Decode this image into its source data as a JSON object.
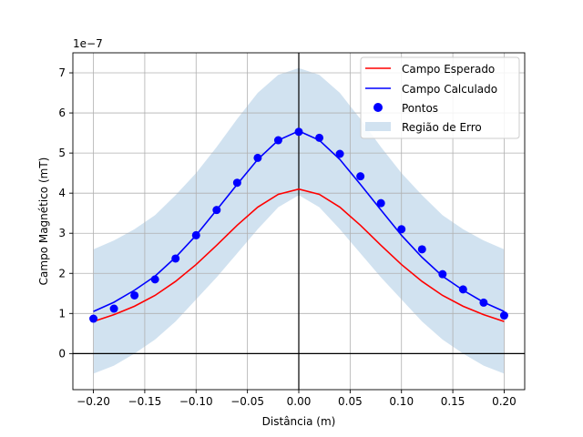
{
  "chart_data": {
    "type": "line",
    "xlabel": "Distância (m)",
    "ylabel": "Campo Magnético (mT)",
    "y_offset_label": "1e−7",
    "xlim": [
      -0.22,
      0.22
    ],
    "ylim": [
      -0.9,
      7.5
    ],
    "x_ticks": [
      -0.2,
      -0.15,
      -0.1,
      -0.05,
      0.0,
      0.05,
      0.1,
      0.15,
      0.2
    ],
    "x_tick_labels": [
      "−0.20",
      "−0.15",
      "−0.10",
      "−0.05",
      "0.00",
      "0.05",
      "0.10",
      "0.15",
      "0.20"
    ],
    "y_ticks": [
      0,
      1,
      2,
      3,
      4,
      5,
      6,
      7
    ],
    "y_tick_labels": [
      "0",
      "1",
      "2",
      "3",
      "4",
      "5",
      "6",
      "7"
    ],
    "grid": true,
    "zero_lines": true,
    "legend_position": "top-right",
    "x": [
      -0.2,
      -0.18,
      -0.16,
      -0.14,
      -0.12,
      -0.1,
      -0.08,
      -0.06,
      -0.04,
      -0.02,
      0.0,
      0.02,
      0.04,
      0.06,
      0.08,
      0.1,
      0.12,
      0.14,
      0.16,
      0.18,
      0.2
    ],
    "series": [
      {
        "name": "Campo Esperado",
        "kind": "line",
        "color": "#ff0000",
        "values": [
          0.8,
          0.97,
          1.18,
          1.45,
          1.8,
          2.22,
          2.7,
          3.2,
          3.65,
          3.97,
          4.1,
          3.97,
          3.65,
          3.2,
          2.7,
          2.22,
          1.8,
          1.45,
          1.18,
          0.97,
          0.8
        ]
      },
      {
        "name": "Campo Calculado",
        "kind": "line",
        "color": "#0000ff",
        "values": [
          1.05,
          1.28,
          1.58,
          1.93,
          2.4,
          2.95,
          3.58,
          4.22,
          4.84,
          5.32,
          5.55,
          5.32,
          4.84,
          4.22,
          3.58,
          2.95,
          2.4,
          1.93,
          1.58,
          1.28,
          1.05
        ]
      },
      {
        "name": "Pontos",
        "kind": "scatter",
        "color": "#0000ff",
        "values": [
          0.87,
          1.12,
          1.45,
          1.85,
          2.37,
          2.95,
          3.58,
          4.26,
          4.88,
          5.32,
          5.53,
          5.38,
          4.98,
          4.42,
          3.75,
          3.1,
          2.6,
          1.98,
          1.6,
          1.27,
          0.95
        ]
      }
    ],
    "error_region": {
      "name": "Região de Erro",
      "color": "#c6dbec",
      "lower": [
        -0.5,
        -0.3,
        0.0,
        0.35,
        0.8,
        1.35,
        1.9,
        2.5,
        3.1,
        3.65,
        3.95,
        3.65,
        3.1,
        2.5,
        1.9,
        1.35,
        0.8,
        0.35,
        0.0,
        -0.3,
        -0.5
      ],
      "upper": [
        2.6,
        2.82,
        3.1,
        3.45,
        3.95,
        4.5,
        5.15,
        5.85,
        6.5,
        6.95,
        7.12,
        6.95,
        6.5,
        5.85,
        5.15,
        4.5,
        3.95,
        3.45,
        3.1,
        2.82,
        2.6
      ]
    }
  }
}
